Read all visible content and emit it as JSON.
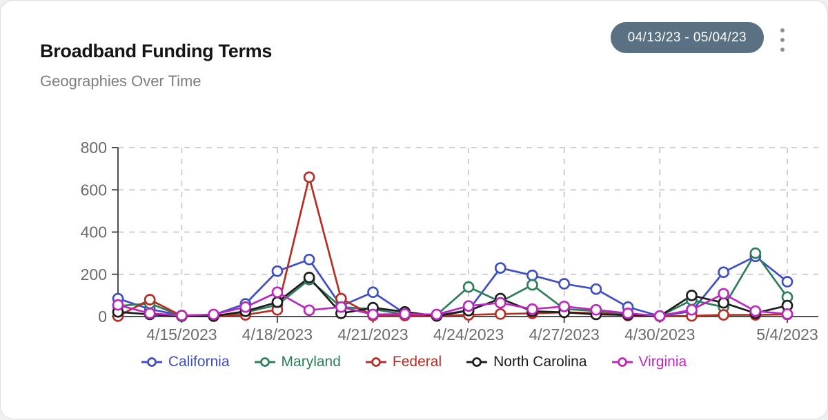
{
  "header": {
    "title": "Broadband Funding Terms",
    "subtitle": "Geographies Over Time",
    "date_range": "04/13/23 - 05/04/23",
    "menu_icon": "kebab-menu-icon"
  },
  "style": {
    "badge_bg": "#5a7184",
    "badge_text": "#ffffff",
    "axis_color": "#4d4d4d",
    "grid_color": "#c9c9c9",
    "tick_label_color": "#6b6b6b"
  },
  "chart_data": {
    "type": "line",
    "title": "Broadband Funding Terms",
    "subtitle": "Geographies Over Time",
    "x": [
      "4/13/2023",
      "4/14/2023",
      "4/15/2023",
      "4/16/2023",
      "4/17/2023",
      "4/18/2023",
      "4/19/2023",
      "4/20/2023",
      "4/21/2023",
      "4/22/2023",
      "4/23/2023",
      "4/24/2023",
      "4/25/2023",
      "4/26/2023",
      "4/27/2023",
      "4/28/2023",
      "4/29/2023",
      "4/30/2023",
      "5/1/2023",
      "5/2/2023",
      "5/3/2023",
      "5/4/2023"
    ],
    "x_tick_indices": [
      2,
      5,
      8,
      11,
      14,
      17,
      21
    ],
    "x_tick_labels": [
      "4/15/2023",
      "4/18/2023",
      "4/21/2023",
      "4/24/2023",
      "4/27/2023",
      "4/30/2023",
      "5/4/2023"
    ],
    "ylim": [
      0,
      800
    ],
    "y_ticks": [
      0,
      200,
      400,
      600,
      800
    ],
    "grid": "dashed",
    "marker": "open-circle",
    "legend_position": "bottom",
    "series": [
      {
        "name": "California",
        "color": "#3f4fc1",
        "values": [
          85,
          35,
          5,
          8,
          60,
          215,
          270,
          50,
          115,
          15,
          5,
          30,
          230,
          195,
          155,
          130,
          45,
          2,
          25,
          210,
          285,
          165
        ]
      },
      {
        "name": "Maryland",
        "color": "#2e7d5b",
        "values": [
          50,
          62,
          3,
          3,
          20,
          55,
          175,
          45,
          35,
          10,
          8,
          140,
          70,
          150,
          36,
          26,
          10,
          2,
          78,
          45,
          300,
          92
        ]
      },
      {
        "name": "Federal",
        "color": "#b42e24",
        "values": [
          2,
          80,
          3,
          2,
          8,
          32,
          660,
          85,
          5,
          5,
          3,
          8,
          12,
          15,
          20,
          16,
          5,
          2,
          3,
          8,
          8,
          10
        ]
      },
      {
        "name": "North Carolina",
        "color": "#1c1c1c",
        "values": [
          22,
          10,
          2,
          2,
          25,
          68,
          185,
          15,
          42,
          22,
          3,
          28,
          85,
          25,
          20,
          10,
          8,
          2,
          100,
          65,
          16,
          52
        ]
      },
      {
        "name": "Virginia",
        "color": "#ba28bc",
        "values": [
          55,
          15,
          5,
          10,
          45,
          115,
          30,
          45,
          10,
          12,
          10,
          50,
          65,
          35,
          48,
          32,
          15,
          3,
          32,
          108,
          26,
          12
        ]
      }
    ]
  }
}
